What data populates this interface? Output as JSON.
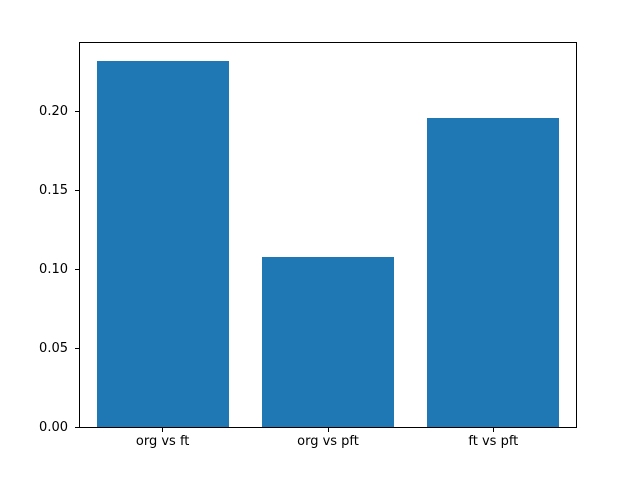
{
  "chart_data": {
    "type": "bar",
    "title": "",
    "xlabel": "",
    "ylabel": "",
    "categories": [
      "org vs ft",
      "org vs pft",
      "ft vs pft"
    ],
    "values": [
      0.232,
      0.108,
      0.196
    ],
    "ylim": [
      0,
      0.2436
    ],
    "yticks": [
      0.0,
      0.05,
      0.1,
      0.15,
      0.2
    ],
    "ytick_labels": [
      "0.00",
      "0.05",
      "0.10",
      "0.15",
      "0.20"
    ],
    "bar_color": "#1f77b4",
    "bar_width_fraction": 0.8,
    "background_color": "#ffffff",
    "grid": false,
    "legend": null
  }
}
